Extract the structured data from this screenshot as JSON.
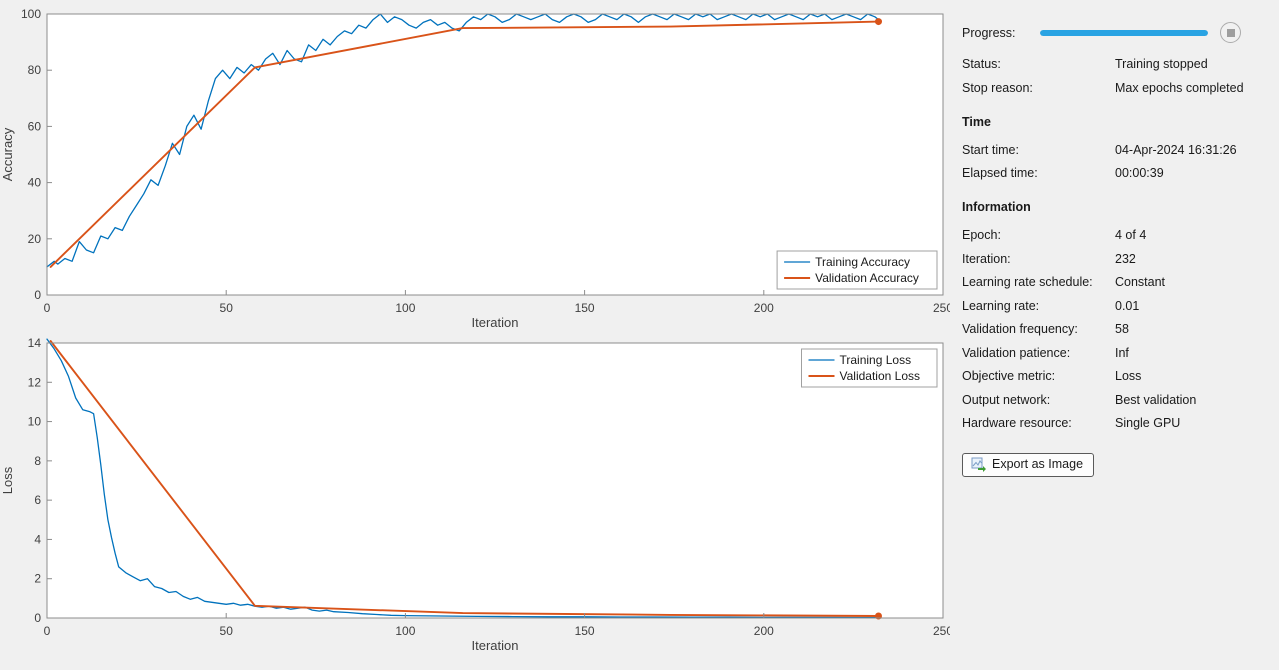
{
  "panel": {
    "progress_label": "Progress:",
    "progress_percent": 100,
    "status_label": "Status:",
    "status_value": "Training stopped",
    "stop_reason_label": "Stop reason:",
    "stop_reason_value": "Max epochs completed",
    "time_header": "Time",
    "rows_time": [
      {
        "label": "Start time:",
        "value": "04-Apr-2024 16:31:26"
      },
      {
        "label": "Elapsed time:",
        "value": "00:00:39"
      }
    ],
    "information_header": "Information",
    "rows_info": [
      {
        "label": "Epoch:",
        "value": "4 of 4"
      },
      {
        "label": "Iteration:",
        "value": "232"
      },
      {
        "label": "Learning rate schedule:",
        "value": "Constant"
      },
      {
        "label": "Learning rate:",
        "value": "0.01"
      },
      {
        "label": "Validation frequency:",
        "value": "58"
      },
      {
        "label": "Validation patience:",
        "value": "Inf"
      },
      {
        "label": "Objective metric:",
        "value": "Loss"
      },
      {
        "label": "Output network:",
        "value": "Best validation"
      },
      {
        "label": "Hardware resource:",
        "value": "Single GPU"
      }
    ],
    "export_button_label": "Export as Image"
  },
  "colors": {
    "training": "#0072BD",
    "validation": "#D95319",
    "progress": "#29A3E3",
    "axis": "#8c8c8c",
    "tick_text": "#404040"
  },
  "chart_data": [
    {
      "type": "line",
      "title": "",
      "xlabel": "Iteration",
      "ylabel": "Accuracy",
      "xlim": [
        0,
        250
      ],
      "ylim": [
        0,
        100
      ],
      "xticks": [
        0,
        50,
        100,
        150,
        200,
        250
      ],
      "yticks": [
        0,
        20,
        40,
        60,
        80,
        100
      ],
      "grid": false,
      "legend": {
        "position": "bottom-right"
      },
      "series": [
        {
          "name": "Training Accuracy",
          "color": "#0072BD",
          "marker_end": false,
          "points": [
            [
              0,
              10
            ],
            [
              2,
              12
            ],
            [
              3,
              11
            ],
            [
              5,
              13
            ],
            [
              7,
              12
            ],
            [
              9,
              19
            ],
            [
              11,
              16
            ],
            [
              13,
              15
            ],
            [
              15,
              21
            ],
            [
              17,
              20
            ],
            [
              19,
              24
            ],
            [
              21,
              23
            ],
            [
              23,
              28
            ],
            [
              25,
              32
            ],
            [
              27,
              36
            ],
            [
              29,
              41
            ],
            [
              31,
              39
            ],
            [
              33,
              46
            ],
            [
              35,
              54
            ],
            [
              37,
              50
            ],
            [
              39,
              60
            ],
            [
              41,
              64
            ],
            [
              43,
              59
            ],
            [
              45,
              69
            ],
            [
              47,
              77
            ],
            [
              49,
              80
            ],
            [
              51,
              77
            ],
            [
              53,
              81
            ],
            [
              55,
              79
            ],
            [
              57,
              82
            ],
            [
              59,
              80
            ],
            [
              61,
              84
            ],
            [
              63,
              86
            ],
            [
              65,
              82
            ],
            [
              67,
              87
            ],
            [
              69,
              84
            ],
            [
              71,
              83
            ],
            [
              73,
              89
            ],
            [
              75,
              87
            ],
            [
              77,
              91
            ],
            [
              79,
              89
            ],
            [
              81,
              92
            ],
            [
              83,
              94
            ],
            [
              85,
              93
            ],
            [
              87,
              96
            ],
            [
              89,
              95
            ],
            [
              91,
              98
            ],
            [
              93,
              100
            ],
            [
              95,
              97
            ],
            [
              97,
              99
            ],
            [
              99,
              98
            ],
            [
              101,
              96
            ],
            [
              103,
              95
            ],
            [
              105,
              97
            ],
            [
              107,
              98
            ],
            [
              109,
              96
            ],
            [
              111,
              97
            ],
            [
              113,
              95
            ],
            [
              115,
              94
            ],
            [
              117,
              97
            ],
            [
              119,
              99
            ],
            [
              121,
              98
            ],
            [
              123,
              100
            ],
            [
              125,
              99
            ],
            [
              127,
              97
            ],
            [
              129,
              98
            ],
            [
              131,
              100
            ],
            [
              133,
              99
            ],
            [
              135,
              98
            ],
            [
              137,
              99
            ],
            [
              139,
              100
            ],
            [
              141,
              98
            ],
            [
              143,
              97
            ],
            [
              145,
              99
            ],
            [
              147,
              100
            ],
            [
              149,
              99
            ],
            [
              151,
              97
            ],
            [
              153,
              98
            ],
            [
              155,
              100
            ],
            [
              157,
              99
            ],
            [
              159,
              98
            ],
            [
              161,
              100
            ],
            [
              163,
              99
            ],
            [
              165,
              97
            ],
            [
              167,
              99
            ],
            [
              169,
              100
            ],
            [
              171,
              99
            ],
            [
              173,
              98
            ],
            [
              175,
              100
            ],
            [
              177,
              99
            ],
            [
              179,
              98
            ],
            [
              181,
              100
            ],
            [
              183,
              99
            ],
            [
              185,
              100
            ],
            [
              187,
              98
            ],
            [
              189,
              99
            ],
            [
              191,
              100
            ],
            [
              193,
              99
            ],
            [
              195,
              98
            ],
            [
              197,
              100
            ],
            [
              199,
              99
            ],
            [
              201,
              100
            ],
            [
              203,
              98
            ],
            [
              205,
              99
            ],
            [
              207,
              100
            ],
            [
              209,
              99
            ],
            [
              211,
              98
            ],
            [
              213,
              100
            ],
            [
              215,
              99
            ],
            [
              217,
              100
            ],
            [
              219,
              98
            ],
            [
              221,
              99
            ],
            [
              223,
              100
            ],
            [
              225,
              99
            ],
            [
              227,
              98
            ],
            [
              229,
              100
            ],
            [
              231,
              99
            ],
            [
              232,
              98
            ]
          ]
        },
        {
          "name": "Validation Accuracy",
          "color": "#D95319",
          "marker_end": true,
          "points": [
            [
              1,
              10
            ],
            [
              58,
              81
            ],
            [
              116,
              95
            ],
            [
              174,
              95.5
            ],
            [
              232,
              97.3
            ]
          ]
        }
      ]
    },
    {
      "type": "line",
      "title": "",
      "xlabel": "Iteration",
      "ylabel": "Loss",
      "xlim": [
        0,
        250
      ],
      "ylim": [
        0,
        14
      ],
      "xticks": [
        0,
        50,
        100,
        150,
        200,
        250
      ],
      "yticks": [
        0,
        2,
        4,
        6,
        8,
        10,
        12,
        14
      ],
      "grid": false,
      "legend": {
        "position": "top-right"
      },
      "series": [
        {
          "name": "Training Loss",
          "color": "#0072BD",
          "marker_end": false,
          "points": [
            [
              0,
              14.2
            ],
            [
              2,
              13.7
            ],
            [
              4,
              13.1
            ],
            [
              6,
              12.3
            ],
            [
              8,
              11.2
            ],
            [
              10,
              10.6
            ],
            [
              12,
              10.5
            ],
            [
              13,
              10.4
            ],
            [
              14,
              9.2
            ],
            [
              15,
              7.8
            ],
            [
              16,
              6.3
            ],
            [
              17,
              5.0
            ],
            [
              18,
              4.1
            ],
            [
              19,
              3.3
            ],
            [
              20,
              2.6
            ],
            [
              22,
              2.3
            ],
            [
              24,
              2.1
            ],
            [
              26,
              1.9
            ],
            [
              28,
              2.0
            ],
            [
              30,
              1.6
            ],
            [
              32,
              1.5
            ],
            [
              34,
              1.3
            ],
            [
              36,
              1.35
            ],
            [
              38,
              1.1
            ],
            [
              40,
              0.95
            ],
            [
              42,
              1.05
            ],
            [
              44,
              0.85
            ],
            [
              46,
              0.8
            ],
            [
              48,
              0.75
            ],
            [
              50,
              0.7
            ],
            [
              52,
              0.75
            ],
            [
              54,
              0.65
            ],
            [
              56,
              0.7
            ],
            [
              58,
              0.6
            ],
            [
              60,
              0.55
            ],
            [
              62,
              0.6
            ],
            [
              64,
              0.5
            ],
            [
              66,
              0.55
            ],
            [
              68,
              0.45
            ],
            [
              70,
              0.5
            ],
            [
              72,
              0.55
            ],
            [
              74,
              0.4
            ],
            [
              76,
              0.35
            ],
            [
              78,
              0.4
            ],
            [
              80,
              0.32
            ],
            [
              84,
              0.28
            ],
            [
              88,
              0.22
            ],
            [
              92,
              0.18
            ],
            [
              96,
              0.14
            ],
            [
              100,
              0.12
            ],
            [
              110,
              0.1
            ],
            [
              120,
              0.08
            ],
            [
              130,
              0.07
            ],
            [
              140,
              0.06
            ],
            [
              150,
              0.06
            ],
            [
              160,
              0.05
            ],
            [
              170,
              0.05
            ],
            [
              180,
              0.04
            ],
            [
              190,
              0.04
            ],
            [
              200,
              0.03
            ],
            [
              210,
              0.03
            ],
            [
              220,
              0.03
            ],
            [
              232,
              0.02
            ]
          ]
        },
        {
          "name": "Validation Loss",
          "color": "#D95319",
          "marker_end": true,
          "points": [
            [
              1,
              14.1
            ],
            [
              58,
              0.62
            ],
            [
              116,
              0.25
            ],
            [
              174,
              0.16
            ],
            [
              232,
              0.1
            ]
          ]
        }
      ]
    }
  ]
}
